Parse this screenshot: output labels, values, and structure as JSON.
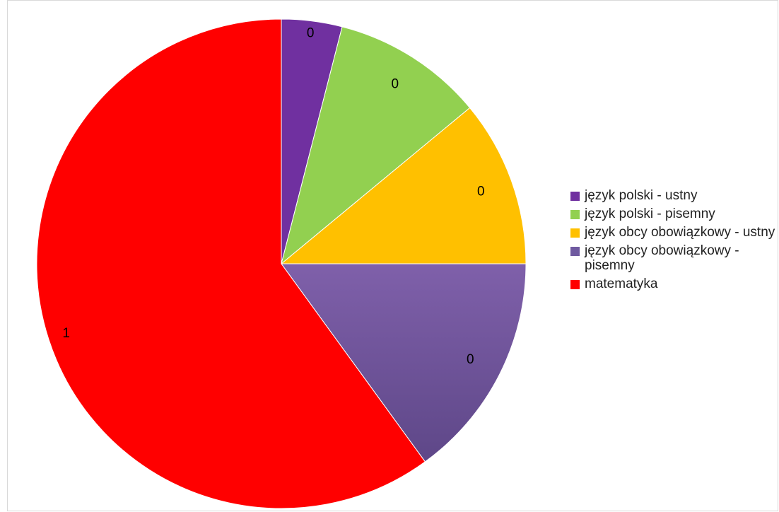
{
  "chart_data": {
    "type": "pie",
    "categories": [
      "język polski - ustny",
      "język polski - pisemny",
      "język obcy obowiązkowy - ustny",
      "język obcy obowiązkowy - pisemny",
      "matematyka"
    ],
    "values": [
      0.04,
      0.1,
      0.11,
      0.15,
      0.6
    ],
    "data_labels": [
      "0",
      "0",
      "0",
      "0",
      "1"
    ],
    "colors": [
      "#7030a0",
      "#92d050",
      "#ffc000",
      "#6f5aa0",
      "#ff0000"
    ],
    "title": "",
    "legend_position": "right"
  }
}
